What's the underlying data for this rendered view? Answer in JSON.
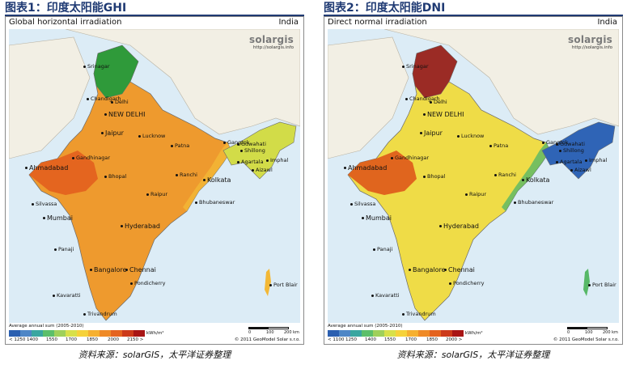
{
  "figures": [
    {
      "fig_title": "图表1：印度太阳能GHI",
      "map_subtitle": "Global horizontal irradiation",
      "region": "India",
      "legend_title": "Average annual sum (2005-2010)",
      "legend_ticks": [
        "< 1250",
        "1400",
        "1550",
        "1700",
        "1850",
        "2000",
        "2150 >"
      ],
      "legend_colors": [
        "#2b5fb0",
        "#4e86c6",
        "#3aa6a0",
        "#5cbf6a",
        "#9fd05a",
        "#d8e04a",
        "#f6d23a",
        "#f6b030",
        "#ef8a27",
        "#e4631f",
        "#cc3a1a",
        "#a81515"
      ],
      "land_color": "#ee9a2e",
      "north_color": "#2f9a3a",
      "northeast_color": "#d2dc48",
      "west_color": "#e4651f",
      "coast_color": "#f3b836",
      "source": "资料来源：solarGIS，太平洋证券整理"
    },
    {
      "fig_title": "图表2：印度太阳能DNI",
      "map_subtitle": "Direct normal irradiation",
      "region": "India",
      "legend_title": "Average annual sum (2005-2010)",
      "legend_ticks": [
        "< 1100",
        "1250",
        "1400",
        "1550",
        "1700",
        "1850",
        "2000 >"
      ],
      "legend_colors": [
        "#2b5fb0",
        "#4e86c6",
        "#3aa6a0",
        "#5cbf6a",
        "#9fd05a",
        "#d8e04a",
        "#f6d23a",
        "#f6b030",
        "#ef8a27",
        "#e4631f",
        "#cc3a1a",
        "#a81515"
      ],
      "land_color": "#efdc47",
      "north_color": "#9b2b25",
      "northeast_color": "#2f64b6",
      "west_color": "#e0651e",
      "coast_color": "#57b867",
      "source": "资料来源：solarGIS，太平洋证券整理"
    }
  ],
  "brand": {
    "logo_main": "solar",
    "logo_accent": "gis",
    "url": "http://solargis.info"
  },
  "copyright": "© 2011 GeoModel Solar s.r.o.",
  "unit": "kWh/m²",
  "scale_labels": [
    "0",
    "100",
    "200 km"
  ],
  "cities": [
    {
      "name": "Srinagar",
      "major": false
    },
    {
      "name": "Chandigarh",
      "major": false
    },
    {
      "name": "Delhi",
      "major": false
    },
    {
      "name": "NEW DELHI",
      "major": true
    },
    {
      "name": "Jaipur",
      "major": true
    },
    {
      "name": "Lucknow",
      "major": false
    },
    {
      "name": "Patna",
      "major": false
    },
    {
      "name": "Gangtok",
      "major": false
    },
    {
      "name": "Guwahati",
      "major": false
    },
    {
      "name": "Shillong",
      "major": false
    },
    {
      "name": "Imphal",
      "major": false
    },
    {
      "name": "Agartala",
      "major": false
    },
    {
      "name": "Aizawl",
      "major": false
    },
    {
      "name": "Gandhinagar",
      "major": false
    },
    {
      "name": "Ahmadabad",
      "major": true
    },
    {
      "name": "Bhopal",
      "major": false
    },
    {
      "name": "Ranchi",
      "major": false
    },
    {
      "name": "Kolkata",
      "major": true
    },
    {
      "name": "Silvassa",
      "major": false
    },
    {
      "name": "Raipur",
      "major": false
    },
    {
      "name": "Bhubaneswar",
      "major": false
    },
    {
      "name": "Mumbai",
      "major": true
    },
    {
      "name": "Hyderabad",
      "major": true
    },
    {
      "name": "Panaji",
      "major": false
    },
    {
      "name": "Bangalore",
      "major": true
    },
    {
      "name": "Chennai",
      "major": true
    },
    {
      "name": "Pondicherry",
      "major": false
    },
    {
      "name": "Port Blair",
      "major": false
    },
    {
      "name": "Kavaratti",
      "major": false
    },
    {
      "name": "Trivandrum",
      "major": false
    }
  ]
}
